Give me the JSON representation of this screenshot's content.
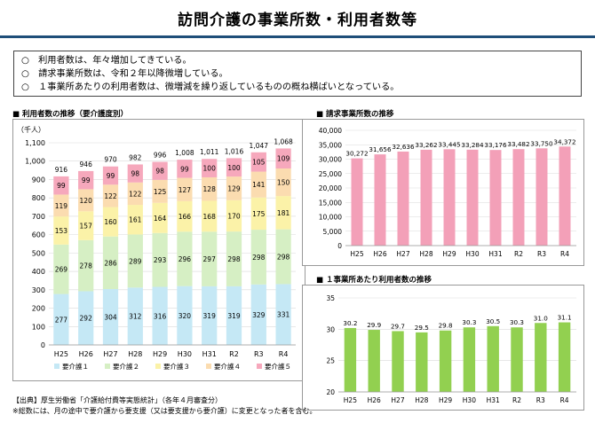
{
  "title": "訪問介護の事業所数・利用者数等",
  "summary": [
    "○　利用者数は、年々増加してきている。",
    "○　請求事業所数は、令和２年以降微増している。",
    "○　１事業所あたりの利用者数は、微増減を繰り返しているものの概ね横ばいとなっている。"
  ],
  "panel_titles": {
    "users": "■ 利用者数の推移（要介護度別）",
    "offices": "■ 請求事業所数の推移",
    "per_office": "■ １事業所あたり利用者数の推移"
  },
  "footnotes": [
    "【出典】厚生労働省「介護給付費等実態統計」（各年４月審査分）",
    "※総数には、月の途中で要介護から要支援（又は要支援から要介護）に変更となった者を含む。"
  ],
  "chart_data": [
    {
      "type": "bar",
      "stacked": true,
      "unit_label": "（千人）",
      "categories": [
        "H25",
        "H26",
        "H27",
        "H28",
        "H29",
        "H30",
        "H31",
        "R2",
        "R3",
        "R4"
      ],
      "series": [
        {
          "name": "要介護１",
          "color": "#c5e8f5",
          "values": [
            277,
            292,
            304,
            312,
            316,
            320,
            319,
            319,
            329,
            331
          ]
        },
        {
          "name": "要介護２",
          "color": "#d6efc4",
          "values": [
            269,
            278,
            286,
            289,
            293,
            296,
            297,
            298,
            298,
            298
          ]
        },
        {
          "name": "要介護３",
          "color": "#fbf2a8",
          "values": [
            153,
            157,
            160,
            161,
            164,
            166,
            168,
            170,
            175,
            181
          ]
        },
        {
          "name": "要介護４",
          "color": "#fbdcb0",
          "values": [
            119,
            120,
            122,
            122,
            125,
            127,
            128,
            129,
            141,
            150
          ]
        },
        {
          "name": "要介護５",
          "color": "#f6a8bc",
          "values": [
            99,
            99,
            99,
            98,
            98,
            99,
            100,
            100,
            105,
            109
          ]
        }
      ],
      "totals": [
        916,
        946,
        970,
        982,
        996,
        "1,008",
        "1,011",
        "1,016",
        "1,047",
        "1,068"
      ],
      "ylim": [
        0,
        1100
      ],
      "yticks": [
        "0",
        "100",
        "200",
        "300",
        "400",
        "500",
        "600",
        "700",
        "800",
        "900",
        "1,000",
        "1,100"
      ],
      "legend": "bottom"
    },
    {
      "type": "bar",
      "categories": [
        "H25",
        "H26",
        "H27",
        "H28",
        "H29",
        "H30",
        "H31",
        "R2",
        "R3",
        "R4"
      ],
      "values": [
        30272,
        31656,
        32636,
        33262,
        33445,
        33284,
        33176,
        33482,
        33750,
        34372
      ],
      "labels": [
        "30,272",
        "31,656",
        "32,636",
        "33,262",
        "33,445",
        "33,284",
        "33,176",
        "33,482",
        "33,750",
        "34,372"
      ],
      "color": "#f3a0b8",
      "ylim": [
        0,
        40000
      ],
      "yticks": [
        "0",
        "5,000",
        "10,000",
        "15,000",
        "20,000",
        "25,000",
        "30,000",
        "35,000",
        "40,000"
      ]
    },
    {
      "type": "bar",
      "categories": [
        "H25",
        "H26",
        "H27",
        "H28",
        "H29",
        "H30",
        "H31",
        "R2",
        "R3",
        "R4"
      ],
      "values": [
        30.2,
        29.9,
        29.7,
        29.5,
        29.8,
        30.3,
        30.5,
        30.3,
        31.0,
        31.1
      ],
      "labels": [
        "30.2",
        "29.9",
        "29.7",
        "29.5",
        "29.8",
        "30.3",
        "30.5",
        "30.3",
        "31.0",
        "31.1"
      ],
      "color": "#92d050",
      "ylim": [
        20,
        35
      ],
      "yticks": [
        "20",
        "25",
        "30",
        "35"
      ]
    }
  ]
}
